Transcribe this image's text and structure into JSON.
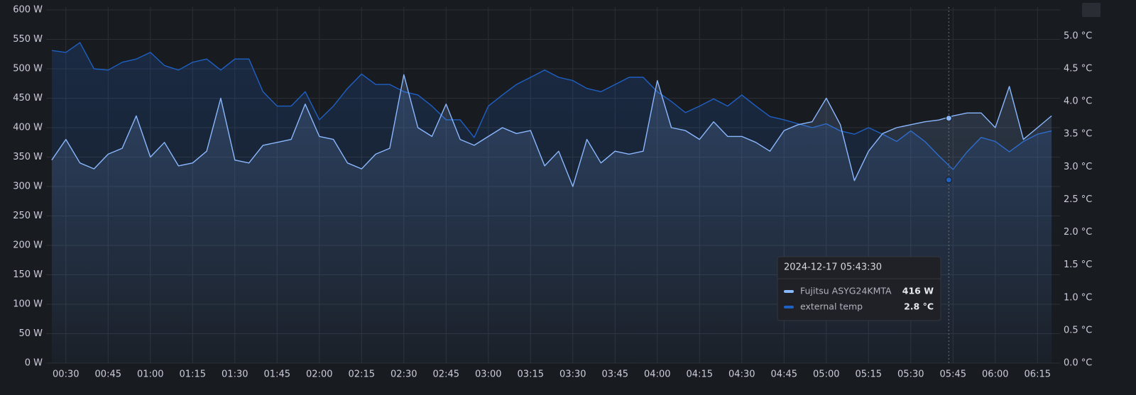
{
  "chart_data": {
    "type": "line",
    "x": [
      "00:25",
      "00:30",
      "00:35",
      "00:40",
      "00:45",
      "00:50",
      "00:55",
      "01:00",
      "01:05",
      "01:10",
      "01:15",
      "01:20",
      "01:25",
      "01:30",
      "01:35",
      "01:40",
      "01:45",
      "01:50",
      "01:55",
      "02:00",
      "02:05",
      "02:10",
      "02:15",
      "02:20",
      "02:25",
      "02:30",
      "02:35",
      "02:40",
      "02:45",
      "02:50",
      "02:55",
      "03:00",
      "03:05",
      "03:10",
      "03:15",
      "03:20",
      "03:25",
      "03:30",
      "03:35",
      "03:40",
      "03:45",
      "03:50",
      "03:55",
      "04:00",
      "04:05",
      "04:10",
      "04:15",
      "04:20",
      "04:25",
      "04:30",
      "04:35",
      "04:40",
      "04:45",
      "04:50",
      "04:55",
      "05:00",
      "05:05",
      "05:10",
      "05:15",
      "05:20",
      "05:25",
      "05:30",
      "05:35",
      "05:40",
      "05:45",
      "05:50",
      "05:55",
      "06:00",
      "06:05",
      "06:10",
      "06:15",
      "06:20"
    ],
    "xlim": [
      "00:23",
      "06:23"
    ],
    "xticks": [
      "00:30",
      "00:45",
      "01:00",
      "01:15",
      "01:30",
      "01:45",
      "02:00",
      "02:15",
      "02:30",
      "02:45",
      "03:00",
      "03:15",
      "03:30",
      "03:45",
      "04:00",
      "04:15",
      "04:30",
      "04:45",
      "05:00",
      "05:15",
      "05:30",
      "05:45",
      "06:00",
      "06:15"
    ],
    "ylim": [
      0,
      600
    ],
    "yticks": [
      {
        "value": 0,
        "label": "0 W"
      },
      {
        "value": 50,
        "label": "50 W"
      },
      {
        "value": 100,
        "label": "100 W"
      },
      {
        "value": 150,
        "label": "150 W"
      },
      {
        "value": 200,
        "label": "200 W"
      },
      {
        "value": 250,
        "label": "250 W"
      },
      {
        "value": 300,
        "label": "300 W"
      },
      {
        "value": 350,
        "label": "350 W"
      },
      {
        "value": 400,
        "label": "400 W"
      },
      {
        "value": 450,
        "label": "450 W"
      },
      {
        "value": 500,
        "label": "500 W"
      },
      {
        "value": 550,
        "label": "550 W"
      },
      {
        "value": 600,
        "label": "600 W"
      }
    ],
    "y2lim": [
      0,
      5.4
    ],
    "y2ticks": [
      {
        "value": 0,
        "label": "0.0 °C"
      },
      {
        "value": 0.5,
        "label": "0.5 °C"
      },
      {
        "value": 1,
        "label": "1.0 °C"
      },
      {
        "value": 1.5,
        "label": "1.5 °C"
      },
      {
        "value": 2,
        "label": "2.0 °C"
      },
      {
        "value": 2.5,
        "label": "2.5 °C"
      },
      {
        "value": 3,
        "label": "3.0 °C"
      },
      {
        "value": 3.5,
        "label": "3.5 °C"
      },
      {
        "value": 4,
        "label": "4.0 °C"
      },
      {
        "value": 4.5,
        "label": "4.5 °C"
      },
      {
        "value": 5,
        "label": "5.0 °C"
      }
    ],
    "grid": true,
    "series": [
      {
        "name": "Fujitsu ASYG24KMTA",
        "color": "#8ab8ff",
        "values": [
          345,
          380,
          340,
          330,
          355,
          365,
          420,
          350,
          375,
          335,
          340,
          360,
          450,
          345,
          340,
          370,
          375,
          380,
          440,
          385,
          380,
          340,
          330,
          355,
          365,
          490,
          400,
          385,
          440,
          380,
          370,
          385,
          400,
          390,
          395,
          335,
          360,
          300,
          380,
          340,
          360,
          355,
          360,
          480,
          400,
          395,
          380,
          410,
          385,
          385,
          375,
          360,
          395,
          405,
          410,
          450,
          405,
          310,
          360,
          390,
          400,
          405,
          410,
          413,
          420,
          425,
          425,
          400,
          470,
          380,
          400,
          420
        ]
      },
      {
        "name": "external temp",
        "color": "#1f60c4",
        "axis": "y2",
        "values": [
          4.78,
          4.75,
          4.9,
          4.5,
          4.48,
          4.6,
          4.65,
          4.75,
          4.55,
          4.48,
          4.6,
          4.65,
          4.48,
          4.65,
          4.65,
          4.15,
          3.93,
          3.93,
          4.15,
          3.72,
          3.93,
          4.2,
          4.42,
          4.26,
          4.26,
          4.15,
          4.1,
          3.93,
          3.72,
          3.72,
          3.45,
          3.93,
          4.1,
          4.26,
          4.37,
          4.48,
          4.37,
          4.32,
          4.2,
          4.15,
          4.26,
          4.37,
          4.37,
          4.15,
          4.0,
          3.83,
          3.93,
          4.04,
          3.93,
          4.1,
          3.93,
          3.77,
          3.72,
          3.66,
          3.6,
          3.66,
          3.55,
          3.5,
          3.6,
          3.5,
          3.39,
          3.55,
          3.39,
          3.17,
          2.96,
          3.23,
          3.45,
          3.39,
          3.23,
          3.39,
          3.5,
          3.55
        ]
      }
    ],
    "tooltip": {
      "time": "2024-12-17 05:43:30",
      "items": [
        {
          "name": "Fujitsu ASYG24KMTA",
          "value": {
            "value": 416,
            "label": "416 W"
          }
        },
        {
          "name": "external temp",
          "value": {
            "value": 2.8,
            "label": "2.8 °C"
          }
        }
      ]
    }
  }
}
